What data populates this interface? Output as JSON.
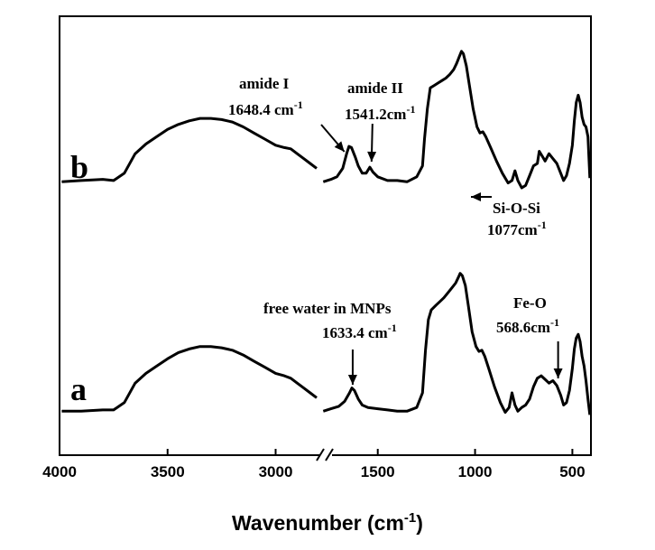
{
  "chart_data": {
    "type": "line",
    "title": "",
    "xlabel": "Wavenumber (cm",
    "xlabel_sup": "-1",
    "xlabel_close": ")",
    "ylabel": "",
    "xlim": [
      4000,
      400
    ],
    "x_ticks": [
      {
        "value": 4000,
        "label": "4000"
      },
      {
        "value": 3500,
        "label": "3500"
      },
      {
        "value": 3000,
        "label": "3000"
      },
      {
        "value": 1500,
        "label": "1500"
      },
      {
        "value": 1000,
        "label": "1000"
      },
      {
        "value": 500,
        "label": "500"
      }
    ],
    "axis_break": {
      "from": 2800,
      "to": 1800
    },
    "y_ticks_visible": false,
    "grid": false,
    "series": [
      {
        "name": "b",
        "segments": [
          [
            [
              3990,
              0.05
            ],
            [
              3900,
              0.06
            ],
            [
              3800,
              0.07
            ],
            [
              3750,
              0.06
            ],
            [
              3700,
              0.12
            ],
            [
              3650,
              0.28
            ],
            [
              3600,
              0.36
            ],
            [
              3550,
              0.42
            ],
            [
              3500,
              0.48
            ],
            [
              3450,
              0.52
            ],
            [
              3400,
              0.55
            ],
            [
              3350,
              0.57
            ],
            [
              3300,
              0.57
            ],
            [
              3250,
              0.56
            ],
            [
              3200,
              0.54
            ],
            [
              3150,
              0.5
            ],
            [
              3100,
              0.45
            ],
            [
              3050,
              0.4
            ],
            [
              3000,
              0.35
            ],
            [
              2960,
              0.33
            ],
            [
              2930,
              0.32
            ],
            [
              2900,
              0.28
            ],
            [
              2870,
              0.24
            ],
            [
              2840,
              0.2
            ],
            [
              2810,
              0.16
            ]
          ],
          [
            [
              1780,
              0.05
            ],
            [
              1740,
              0.07
            ],
            [
              1710,
              0.09
            ],
            [
              1680,
              0.16
            ],
            [
              1660,
              0.28
            ],
            [
              1648,
              0.34
            ],
            [
              1635,
              0.33
            ],
            [
              1615,
              0.25
            ],
            [
              1600,
              0.18
            ],
            [
              1580,
              0.12
            ],
            [
              1560,
              0.12
            ],
            [
              1541,
              0.17
            ],
            [
              1525,
              0.13
            ],
            [
              1500,
              0.09
            ],
            [
              1450,
              0.06
            ],
            [
              1400,
              0.06
            ],
            [
              1350,
              0.05
            ],
            [
              1300,
              0.09
            ],
            [
              1270,
              0.18
            ],
            [
              1260,
              0.4
            ],
            [
              1245,
              0.65
            ],
            [
              1230,
              0.82
            ],
            [
              1210,
              0.84
            ],
            [
              1190,
              0.86
            ],
            [
              1170,
              0.88
            ],
            [
              1150,
              0.9
            ],
            [
              1130,
              0.93
            ],
            [
              1110,
              0.97
            ],
            [
              1095,
              1.02
            ],
            [
              1080,
              1.08
            ],
            [
              1070,
              1.12
            ],
            [
              1060,
              1.1
            ],
            [
              1045,
              1.0
            ],
            [
              1030,
              0.85
            ],
            [
              1010,
              0.65
            ],
            [
              990,
              0.5
            ],
            [
              975,
              0.45
            ],
            [
              960,
              0.46
            ],
            [
              945,
              0.42
            ],
            [
              920,
              0.33
            ],
            [
              890,
              0.22
            ],
            [
              860,
              0.12
            ],
            [
              830,
              0.04
            ],
            [
              810,
              0.06
            ],
            [
              795,
              0.14
            ],
            [
              780,
              0.06
            ],
            [
              760,
              0.0
            ],
            [
              740,
              0.02
            ],
            [
              720,
              0.1
            ],
            [
              700,
              0.18
            ],
            [
              680,
              0.2
            ],
            [
              670,
              0.3
            ],
            [
              655,
              0.26
            ],
            [
              640,
              0.22
            ],
            [
              620,
              0.28
            ],
            [
              600,
              0.24
            ],
            [
              580,
              0.2
            ],
            [
              560,
              0.12
            ],
            [
              545,
              0.06
            ],
            [
              530,
              0.1
            ],
            [
              515,
              0.2
            ],
            [
              500,
              0.35
            ],
            [
              490,
              0.55
            ],
            [
              480,
              0.7
            ],
            [
              470,
              0.76
            ],
            [
              460,
              0.7
            ],
            [
              450,
              0.58
            ],
            [
              440,
              0.52
            ],
            [
              430,
              0.5
            ],
            [
              420,
              0.42
            ],
            [
              410,
              0.08
            ]
          ]
        ]
      },
      {
        "name": "a",
        "segments": [
          [
            [
              3990,
              0.05
            ],
            [
              3900,
              0.05
            ],
            [
              3800,
              0.06
            ],
            [
              3750,
              0.06
            ],
            [
              3700,
              0.12
            ],
            [
              3650,
              0.28
            ],
            [
              3600,
              0.36
            ],
            [
              3550,
              0.42
            ],
            [
              3500,
              0.48
            ],
            [
              3450,
              0.53
            ],
            [
              3400,
              0.56
            ],
            [
              3350,
              0.58
            ],
            [
              3300,
              0.58
            ],
            [
              3250,
              0.57
            ],
            [
              3200,
              0.55
            ],
            [
              3150,
              0.51
            ],
            [
              3100,
              0.46
            ],
            [
              3050,
              0.41
            ],
            [
              3000,
              0.36
            ],
            [
              2960,
              0.34
            ],
            [
              2930,
              0.32
            ],
            [
              2900,
              0.28
            ],
            [
              2870,
              0.24
            ],
            [
              2840,
              0.2
            ],
            [
              2810,
              0.16
            ]
          ],
          [
            [
              1780,
              0.05
            ],
            [
              1740,
              0.07
            ],
            [
              1700,
              0.09
            ],
            [
              1670,
              0.13
            ],
            [
              1645,
              0.2
            ],
            [
              1633,
              0.24
            ],
            [
              1620,
              0.22
            ],
            [
              1600,
              0.15
            ],
            [
              1580,
              0.1
            ],
            [
              1550,
              0.08
            ],
            [
              1500,
              0.07
            ],
            [
              1450,
              0.06
            ],
            [
              1400,
              0.05
            ],
            [
              1350,
              0.05
            ],
            [
              1300,
              0.08
            ],
            [
              1270,
              0.2
            ],
            [
              1255,
              0.55
            ],
            [
              1240,
              0.8
            ],
            [
              1225,
              0.88
            ],
            [
              1200,
              0.92
            ],
            [
              1180,
              0.95
            ],
            [
              1160,
              0.98
            ],
            [
              1140,
              1.02
            ],
            [
              1120,
              1.06
            ],
            [
              1100,
              1.1
            ],
            [
              1085,
              1.15
            ],
            [
              1077,
              1.18
            ],
            [
              1065,
              1.16
            ],
            [
              1050,
              1.08
            ],
            [
              1035,
              0.92
            ],
            [
              1015,
              0.7
            ],
            [
              995,
              0.58
            ],
            [
              980,
              0.54
            ],
            [
              965,
              0.55
            ],
            [
              950,
              0.5
            ],
            [
              930,
              0.4
            ],
            [
              900,
              0.25
            ],
            [
              870,
              0.12
            ],
            [
              845,
              0.04
            ],
            [
              825,
              0.08
            ],
            [
              810,
              0.2
            ],
            [
              795,
              0.1
            ],
            [
              780,
              0.05
            ],
            [
              760,
              0.08
            ],
            [
              740,
              0.1
            ],
            [
              720,
              0.15
            ],
            [
              700,
              0.25
            ],
            [
              680,
              0.32
            ],
            [
              660,
              0.34
            ],
            [
              640,
              0.31
            ],
            [
              620,
              0.28
            ],
            [
              600,
              0.3
            ],
            [
              580,
              0.26
            ],
            [
              560,
              0.18
            ],
            [
              545,
              0.1
            ],
            [
              530,
              0.12
            ],
            [
              515,
              0.22
            ],
            [
              500,
              0.4
            ],
            [
              490,
              0.56
            ],
            [
              480,
              0.65
            ],
            [
              470,
              0.68
            ],
            [
              460,
              0.62
            ],
            [
              450,
              0.5
            ],
            [
              440,
              0.42
            ],
            [
              430,
              0.3
            ],
            [
              420,
              0.15
            ],
            [
              410,
              0.02
            ]
          ]
        ]
      }
    ],
    "series_labels": [
      "b",
      "a"
    ],
    "annotations": {
      "amide1_name": "amide I",
      "amide1_value": "1648.4 cm",
      "amide1_sup": "-1",
      "amide1_x": 1648.4,
      "amide2_name": "amide II",
      "amide2_value": "1541.2cm",
      "amide2_sup": "-1",
      "amide2_x": 1541.2,
      "sios_name": "Si-O-Si",
      "sios_value": "1077cm",
      "sios_sup": "-1",
      "sios_x": 1077,
      "water_name": "free water in MNPs",
      "water_value": "1633.4 cm",
      "water_sup": "-1",
      "water_x": 1633.4,
      "feo_name": "Fe-O",
      "feo_value": "568.6cm",
      "feo_sup": "-1",
      "feo_x": 568.6
    }
  }
}
